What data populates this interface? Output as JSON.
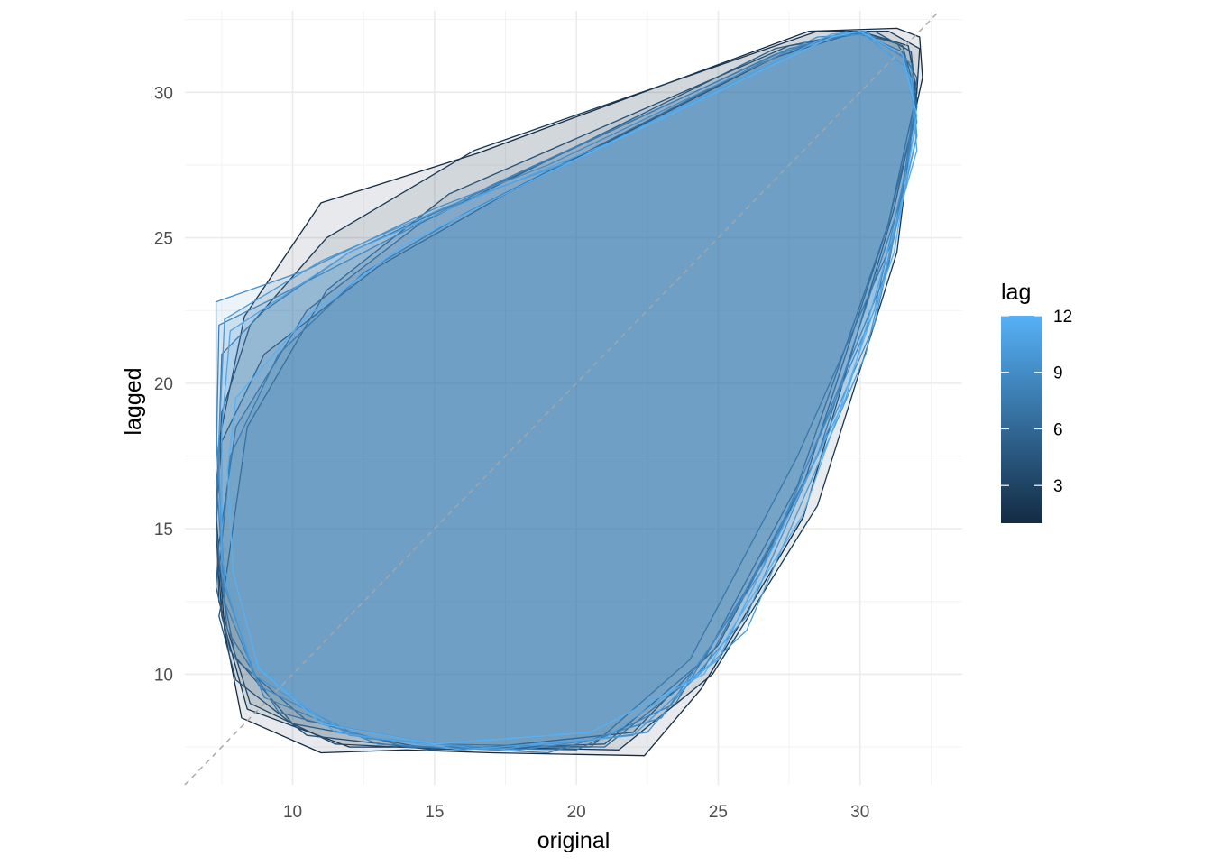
{
  "chart_data": {
    "type": "area",
    "description_of_marks": "lag",
    "title": "",
    "xlabel": "original",
    "ylabel": "lagged",
    "xlim": [
      6.2,
      33.6
    ],
    "ylim": [
      6.2,
      32.8
    ],
    "x_ticks": [
      10,
      15,
      20,
      25,
      30
    ],
    "y_ticks": [
      10,
      15,
      20,
      25,
      30
    ],
    "grid": true,
    "reference_line": {
      "type": "identity",
      "style": "dashed",
      "color": "#a6a6a6"
    },
    "legend": {
      "title": "lag",
      "position": "right",
      "type": "colorbar",
      "range": [
        1,
        12
      ],
      "ticks": [
        3,
        6,
        9,
        12
      ],
      "low_color": "#132B43",
      "high_color": "#56B1F7"
    },
    "series": [
      {
        "lag": 1,
        "points": [
          [
            11.0,
            26.2
          ],
          [
            16.5,
            27.9
          ],
          [
            28.2,
            32.1
          ],
          [
            31.3,
            32.2
          ],
          [
            32.1,
            31.9
          ],
          [
            32.2,
            30.5
          ],
          [
            31.2,
            26.0
          ],
          [
            28.0,
            15.4
          ],
          [
            24.4,
            9.5
          ],
          [
            22.4,
            7.2
          ],
          [
            17.0,
            7.3
          ],
          [
            14.0,
            7.4
          ],
          [
            11.0,
            7.3
          ],
          [
            8.2,
            8.5
          ],
          [
            7.6,
            11.5
          ],
          [
            7.3,
            15.5
          ],
          [
            7.4,
            18.0
          ],
          [
            8.3,
            22.3
          ]
        ]
      },
      {
        "lag": 2,
        "points": [
          [
            8.5,
            22.0
          ],
          [
            11.2,
            25.0
          ],
          [
            16.4,
            28.0
          ],
          [
            28.5,
            32.1
          ],
          [
            31.0,
            32.1
          ],
          [
            32.1,
            31.5
          ],
          [
            32.0,
            30.0
          ],
          [
            31.3,
            24.5
          ],
          [
            28.5,
            15.8
          ],
          [
            24.8,
            10.0
          ],
          [
            21.5,
            7.4
          ],
          [
            16.5,
            7.5
          ],
          [
            12.0,
            7.5
          ],
          [
            8.4,
            8.8
          ],
          [
            7.5,
            12.0
          ],
          [
            7.3,
            15.0
          ],
          [
            7.5,
            19.0
          ]
        ]
      },
      {
        "lag": 3,
        "points": [
          [
            7.5,
            18.0
          ],
          [
            9.0,
            21.0
          ],
          [
            13.0,
            24.0
          ],
          [
            17.5,
            26.5
          ],
          [
            27.0,
            31.2
          ],
          [
            30.0,
            32.1
          ],
          [
            31.7,
            31.6
          ],
          [
            32.0,
            30.0
          ],
          [
            31.0,
            25.5
          ],
          [
            28.0,
            16.5
          ],
          [
            25.0,
            11.0
          ],
          [
            22.0,
            8.0
          ],
          [
            16.0,
            7.4
          ],
          [
            11.5,
            7.6
          ],
          [
            8.5,
            9.0
          ],
          [
            7.4,
            12.5
          ],
          [
            7.3,
            15.5
          ]
        ]
      },
      {
        "lag": 4,
        "points": [
          [
            7.6,
            13.0
          ],
          [
            8.4,
            18.5
          ],
          [
            11.2,
            23.2
          ],
          [
            15.5,
            26.5
          ],
          [
            27.5,
            31.6
          ],
          [
            30.5,
            32.1
          ],
          [
            31.8,
            31.4
          ],
          [
            32.0,
            29.5
          ],
          [
            31.0,
            25.5
          ],
          [
            27.8,
            16.5
          ],
          [
            24.5,
            10.5
          ],
          [
            21.0,
            7.6
          ],
          [
            15.0,
            7.4
          ],
          [
            10.5,
            7.9
          ],
          [
            8.0,
            9.8
          ],
          [
            7.4,
            12.0
          ]
        ]
      },
      {
        "lag": 5,
        "points": [
          [
            7.4,
            14.5
          ],
          [
            8.0,
            18.5
          ],
          [
            10.5,
            22.5
          ],
          [
            14.5,
            25.5
          ],
          [
            27.0,
            31.5
          ],
          [
            30.0,
            32.1
          ],
          [
            31.5,
            31.6
          ],
          [
            32.0,
            29.8
          ],
          [
            31.2,
            25.0
          ],
          [
            27.8,
            17.5
          ],
          [
            24.0,
            10.5
          ],
          [
            20.5,
            7.5
          ],
          [
            14.5,
            7.5
          ],
          [
            10.0,
            8.3
          ],
          [
            7.8,
            10.8
          ],
          [
            7.3,
            13.0
          ]
        ]
      },
      {
        "lag": 6,
        "points": [
          [
            7.8,
            17.5
          ],
          [
            9.5,
            21.0
          ],
          [
            12.5,
            23.8
          ],
          [
            16.0,
            25.8
          ],
          [
            26.5,
            31.0
          ],
          [
            29.5,
            32.1
          ],
          [
            31.3,
            31.7
          ],
          [
            32.0,
            30.5
          ],
          [
            31.5,
            26.5
          ],
          [
            28.5,
            17.5
          ],
          [
            24.5,
            10.2
          ],
          [
            21.0,
            7.5
          ],
          [
            15.0,
            7.6
          ],
          [
            10.5,
            8.4
          ],
          [
            8.0,
            10.5
          ],
          [
            7.4,
            13.5
          ]
        ]
      },
      {
        "lag": 7,
        "points": [
          [
            7.5,
            21.0
          ],
          [
            9.0,
            22.5
          ],
          [
            12.0,
            24.5
          ],
          [
            16.0,
            26.3
          ],
          [
            27.0,
            31.3
          ],
          [
            29.8,
            32.1
          ],
          [
            31.5,
            31.4
          ],
          [
            32.0,
            29.5
          ],
          [
            31.0,
            24.0
          ],
          [
            27.0,
            14.5
          ],
          [
            23.5,
            9.0
          ],
          [
            20.0,
            7.4
          ],
          [
            14.0,
            7.5
          ],
          [
            9.5,
            8.7
          ],
          [
            7.7,
            11.5
          ],
          [
            7.3,
            15.0
          ]
        ]
      },
      {
        "lag": 8,
        "points": [
          [
            7.4,
            22.0
          ],
          [
            9.5,
            23.0
          ],
          [
            13.5,
            25.0
          ],
          [
            17.0,
            26.8
          ],
          [
            27.5,
            31.5
          ],
          [
            30.0,
            32.1
          ],
          [
            31.6,
            31.2
          ],
          [
            32.0,
            29.0
          ],
          [
            30.5,
            22.5
          ],
          [
            26.5,
            13.5
          ],
          [
            23.0,
            8.5
          ],
          [
            19.0,
            7.3
          ],
          [
            13.0,
            7.6
          ],
          [
            9.0,
            9.2
          ],
          [
            7.6,
            12.5
          ],
          [
            7.3,
            17.0
          ]
        ]
      },
      {
        "lag": 9,
        "points": [
          [
            7.3,
            22.8
          ],
          [
            10.5,
            23.9
          ],
          [
            15.0,
            26.0
          ],
          [
            19.0,
            27.5
          ],
          [
            28.5,
            31.9
          ],
          [
            30.3,
            32.0
          ],
          [
            31.8,
            31.0
          ],
          [
            32.0,
            28.5
          ],
          [
            30.5,
            22.0
          ],
          [
            26.0,
            12.0
          ],
          [
            22.5,
            8.0
          ],
          [
            18.0,
            7.4
          ],
          [
            12.5,
            7.8
          ],
          [
            8.8,
            9.6
          ],
          [
            7.6,
            13.0
          ],
          [
            7.3,
            18.5
          ]
        ]
      },
      {
        "lag": 10,
        "points": [
          [
            7.6,
            22.2
          ],
          [
            11.0,
            24.2
          ],
          [
            15.5,
            26.1
          ],
          [
            20.0,
            27.7
          ],
          [
            28.8,
            31.9
          ],
          [
            30.0,
            32.1
          ],
          [
            31.7,
            30.8
          ],
          [
            32.0,
            28.5
          ],
          [
            30.2,
            21.0
          ],
          [
            26.0,
            11.5
          ],
          [
            22.0,
            7.9
          ],
          [
            17.0,
            7.4
          ],
          [
            12.0,
            7.9
          ],
          [
            8.6,
            10.0
          ],
          [
            7.5,
            13.5
          ],
          [
            7.4,
            18.0
          ]
        ]
      },
      {
        "lag": 11,
        "points": [
          [
            7.8,
            21.8
          ],
          [
            12.0,
            24.5
          ],
          [
            16.5,
            26.4
          ],
          [
            21.0,
            28.2
          ],
          [
            29.0,
            32.0
          ],
          [
            30.2,
            32.1
          ],
          [
            31.8,
            30.5
          ],
          [
            32.0,
            28.0
          ],
          [
            29.5,
            19.5
          ],
          [
            25.0,
            10.5
          ],
          [
            21.0,
            7.8
          ],
          [
            16.0,
            7.4
          ],
          [
            11.5,
            8.0
          ],
          [
            8.5,
            10.5
          ],
          [
            7.5,
            14.0
          ],
          [
            7.5,
            18.5
          ]
        ]
      },
      {
        "lag": 12,
        "points": [
          [
            8.0,
            19.5
          ],
          [
            10.5,
            22.3
          ],
          [
            14.0,
            24.8
          ],
          [
            18.5,
            27.0
          ],
          [
            29.0,
            31.9
          ],
          [
            30.0,
            32.1
          ],
          [
            31.5,
            31.3
          ],
          [
            32.0,
            29.2
          ],
          [
            31.2,
            24.5
          ],
          [
            28.0,
            15.5
          ],
          [
            24.5,
            10.0
          ],
          [
            20.5,
            8.0
          ],
          [
            15.0,
            7.6
          ],
          [
            11.0,
            8.3
          ],
          [
            8.8,
            10.2
          ],
          [
            7.9,
            13.5
          ],
          [
            7.7,
            17.0
          ]
        ]
      }
    ]
  }
}
